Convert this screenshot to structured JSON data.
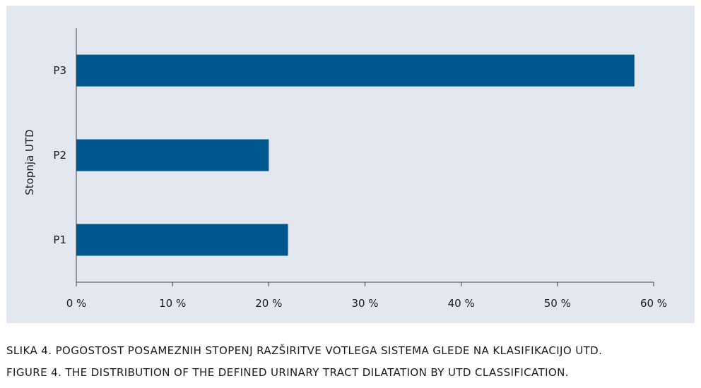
{
  "chart_data": {
    "type": "bar",
    "orientation": "horizontal",
    "categories": [
      "P3",
      "P2",
      "P1"
    ],
    "values": [
      58,
      20,
      22
    ],
    "x_ticks": [
      "0 %",
      "10 %",
      "20 %",
      "30 %",
      "40 %",
      "50 %",
      "60 %"
    ],
    "xlim": [
      0,
      60
    ],
    "ylabel": "Stopnja UTD",
    "xlabel": "",
    "grid": false,
    "bar_color": "#00578f",
    "background": "#e3e7ef"
  },
  "captions": {
    "sl": "SLIKA 4. POGOSTOST POSAMEZNIH STOPENJ RAZŠIRITVE VOTLEGA SISTEMA GLEDE NA KLASIFIKACIJO UTD.",
    "en": "FIGURE 4. THE DISTRIBUTION OF THE DEFINED URINARY TRACT DILATATION BY UTD CLASSIFICATION."
  }
}
